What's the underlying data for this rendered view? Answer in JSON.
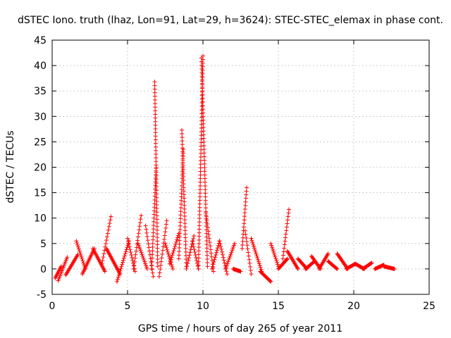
{
  "chart_data": {
    "type": "scatter",
    "title": "dSTEC Iono. truth (lhaz, Lon=91, Lat=29, h=3624): STEC-STEC_elemax in phase cont.",
    "xlabel": "GPS time / hours of day 265 of year 2011",
    "ylabel": "dSTEC  / TECUs",
    "xlim": [
      0,
      25
    ],
    "ylim": [
      -5,
      45
    ],
    "xticks": [
      0,
      5,
      10,
      15,
      20,
      25
    ],
    "yticks": [
      -5,
      0,
      5,
      10,
      15,
      20,
      25,
      30,
      35,
      40,
      45
    ],
    "x_tick_labels": [
      "0",
      "5",
      "10",
      "15",
      "20",
      "25"
    ],
    "y_tick_labels": [
      "-5",
      "0",
      "5",
      "10",
      "15",
      "20",
      "25",
      "30",
      "35",
      "40",
      "45"
    ],
    "grid": true,
    "marker": "+",
    "color": "#ff0000",
    "arcs": [
      {
        "start": 0.2,
        "end": 0.6,
        "y_start": -1.8,
        "y_end": 0.5
      },
      {
        "start": 0.4,
        "end": 1.0,
        "y_start": -2.3,
        "y_end": 2.3
      },
      {
        "start": 0.9,
        "end": 1.7,
        "y_start": -1.2,
        "y_end": 2.8
      },
      {
        "start": 1.6,
        "end": 2.2,
        "y_start": 5.5,
        "y_end": 0.0
      },
      {
        "start": 2.0,
        "end": 2.8,
        "y_start": -1.0,
        "y_end": 4.0
      },
      {
        "start": 2.7,
        "end": 3.5,
        "y_start": 4.0,
        "y_end": -0.5
      },
      {
        "start": 3.3,
        "end": 3.9,
        "y_start": 1.0,
        "y_end": 10.3
      },
      {
        "start": 3.6,
        "end": 4.5,
        "y_start": 4.0,
        "y_end": -1.0
      },
      {
        "start": 4.3,
        "end": 5.1,
        "y_start": -2.5,
        "y_end": 5.5
      },
      {
        "start": 5.0,
        "end": 5.5,
        "y_start": 6.0,
        "y_end": -0.5
      },
      {
        "start": 5.4,
        "end": 5.9,
        "y_start": 0.0,
        "y_end": 10.5
      },
      {
        "start": 5.7,
        "end": 6.3,
        "y_start": 5.0,
        "y_end": 0.0
      },
      {
        "start": 6.2,
        "end": 6.7,
        "y_start": 8.5,
        "y_end": -1.5
      },
      {
        "start": 6.6,
        "end": 6.9,
        "y_start": 0.0,
        "y_end": 20.0
      },
      {
        "start": 6.8,
        "end": 7.0,
        "y_start": 36.8,
        "y_end": 0.5
      },
      {
        "start": 7.1,
        "end": 7.6,
        "y_start": -1.5,
        "y_end": 9.5
      },
      {
        "start": 7.5,
        "end": 8.0,
        "y_start": 5.0,
        "y_end": 0.0
      },
      {
        "start": 7.8,
        "end": 8.4,
        "y_start": 1.0,
        "y_end": 7.0
      },
      {
        "start": 8.4,
        "end": 8.7,
        "y_start": 2.0,
        "y_end": 23.5
      },
      {
        "start": 8.6,
        "end": 8.9,
        "y_start": 27.3,
        "y_end": 0.5
      },
      {
        "start": 8.9,
        "end": 9.4,
        "y_start": 0.0,
        "y_end": 6.5
      },
      {
        "start": 9.3,
        "end": 9.7,
        "y_start": 5.5,
        "y_end": 0.0
      },
      {
        "start": 9.7,
        "end": 10.0,
        "y_start": 0.0,
        "y_end": 41.9
      },
      {
        "start": 9.9,
        "end": 10.3,
        "y_start": 41.5,
        "y_end": 0.5
      },
      {
        "start": 10.2,
        "end": 10.7,
        "y_start": 11.0,
        "y_end": -0.5
      },
      {
        "start": 10.6,
        "end": 11.1,
        "y_start": 0.0,
        "y_end": 5.5
      },
      {
        "start": 11.1,
        "end": 11.6,
        "y_start": 5.5,
        "y_end": -1.0
      },
      {
        "start": 11.5,
        "end": 12.1,
        "y_start": 0.0,
        "y_end": 5.0
      },
      {
        "start": 12.0,
        "end": 12.5,
        "y_start": 0.0,
        "y_end": -0.5
      },
      {
        "start": 12.6,
        "end": 12.9,
        "y_start": 4.0,
        "y_end": 16.0
      },
      {
        "start": 12.8,
        "end": 13.2,
        "y_start": 7.5,
        "y_end": -1.0
      },
      {
        "start": 13.2,
        "end": 13.9,
        "y_start": 6.0,
        "y_end": -0.5
      },
      {
        "start": 13.8,
        "end": 14.5,
        "y_start": -0.5,
        "y_end": -2.5
      },
      {
        "start": 14.5,
        "end": 15.0,
        "y_start": 5.0,
        "y_end": 0.5
      },
      {
        "start": 15.0,
        "end": 15.6,
        "y_start": 0.0,
        "y_end": 2.0
      },
      {
        "start": 15.3,
        "end": 15.7,
        "y_start": 2.0,
        "y_end": 11.7
      },
      {
        "start": 15.6,
        "end": 16.3,
        "y_start": 3.5,
        "y_end": 0.0
      },
      {
        "start": 16.3,
        "end": 16.9,
        "y_start": 2.0,
        "y_end": 0.0
      },
      {
        "start": 16.8,
        "end": 17.4,
        "y_start": 0.0,
        "y_end": 1.5
      },
      {
        "start": 17.2,
        "end": 17.8,
        "y_start": 2.5,
        "y_end": 0.0
      },
      {
        "start": 17.7,
        "end": 18.3,
        "y_start": 0.0,
        "y_end": 3.0
      },
      {
        "start": 18.3,
        "end": 18.9,
        "y_start": 1.5,
        "y_end": 0.0
      },
      {
        "start": 18.9,
        "end": 19.6,
        "y_start": 3.0,
        "y_end": 0.0
      },
      {
        "start": 19.5,
        "end": 20.1,
        "y_start": 0.0,
        "y_end": 1.0
      },
      {
        "start": 20.1,
        "end": 20.7,
        "y_start": 1.0,
        "y_end": 0.0
      },
      {
        "start": 20.6,
        "end": 21.2,
        "y_start": 0.0,
        "y_end": 1.2
      },
      {
        "start": 21.4,
        "end": 22.0,
        "y_start": 0.0,
        "y_end": 0.8
      },
      {
        "start": 22.0,
        "end": 22.7,
        "y_start": 0.5,
        "y_end": 0.0
      }
    ]
  }
}
